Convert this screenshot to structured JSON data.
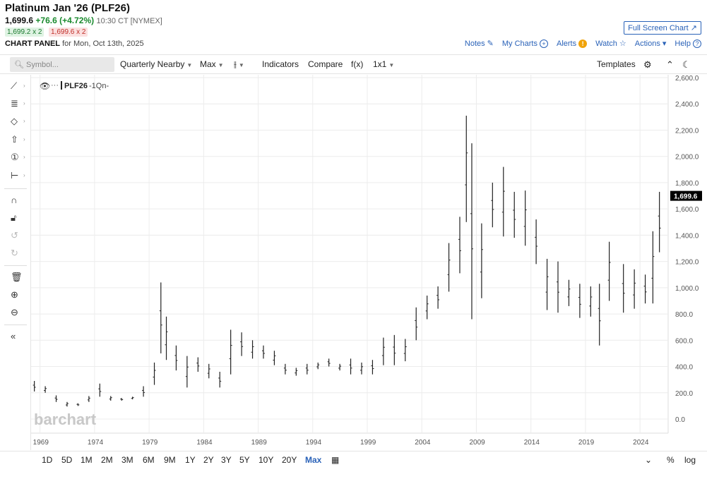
{
  "header": {
    "title": "Platinum Jan '26 (PLF26)",
    "last": "1,699.6",
    "change": "+76.6 (+4.72%)",
    "time": "10:30 CT [NYMEX]",
    "bid": "1,699.2 x 2",
    "ask": "1,699.6 x 2",
    "panel_label": "CHART PANEL",
    "panel_date": "for Mon, Oct 13th, 2025",
    "fullscreen": "Full Screen Chart ↗"
  },
  "links": {
    "notes": "Notes",
    "mycharts": "My Charts",
    "alerts": "Alerts",
    "watch": "Watch",
    "actions": "Actions",
    "help": "Help"
  },
  "toolbar": {
    "symbol_placeholder": "Symbol...",
    "period": "Quarterly Nearby",
    "range": "Max",
    "type_icon": "⫲",
    "indicators": "Indicators",
    "compare": "Compare",
    "fx": "f(x)",
    "layout": "1x1",
    "templates": "Templates"
  },
  "legend": {
    "symbol": "PLF26",
    "interval": "-1Qn-"
  },
  "watermark": "barchart",
  "price_label": "1,699.6",
  "colors": {
    "accent": "#2a62b8",
    "up": "#1a8a2e",
    "down": "#c0302a",
    "bars": "#222222"
  },
  "bottom": {
    "ranges": [
      "1D",
      "5D",
      "1M",
      "2M",
      "3M",
      "6M",
      "9M",
      "1Y",
      "2Y",
      "3Y",
      "5Y",
      "10Y",
      "20Y",
      "Max"
    ],
    "active": "Max",
    "percent": "%",
    "log": "log"
  },
  "chart_data": {
    "type": "ohlc",
    "yticks": [
      "2,600.0",
      "2,400.0",
      "2,200.0",
      "2,000.0",
      "1,800.0",
      "1,600.0",
      "1,400.0",
      "1,200.0",
      "1,000.0",
      "800.0",
      "600.0",
      "400.0",
      "200.0",
      "0.0"
    ],
    "xticks": [
      "1969",
      "1974",
      "1979",
      "1984",
      "1989",
      "1994",
      "1999",
      "2004",
      "2009",
      "2014",
      "2019",
      "2024"
    ],
    "ylim": [
      0,
      2600
    ],
    "xlim": [
      1968.2,
      2026.6
    ],
    "last": 1699.6,
    "series": [
      {
        "x": 1968.5,
        "h": 290,
        "l": 210
      },
      {
        "x": 1969.5,
        "h": 250,
        "l": 200
      },
      {
        "x": 1970.5,
        "h": 180,
        "l": 130
      },
      {
        "x": 1971.5,
        "h": 130,
        "l": 95
      },
      {
        "x": 1972.5,
        "h": 120,
        "l": 100
      },
      {
        "x": 1973.5,
        "h": 175,
        "l": 130
      },
      {
        "x": 1974.5,
        "h": 270,
        "l": 170
      },
      {
        "x": 1975.5,
        "h": 175,
        "l": 140
      },
      {
        "x": 1976.5,
        "h": 160,
        "l": 140
      },
      {
        "x": 1977.5,
        "h": 170,
        "l": 150
      },
      {
        "x": 1978.5,
        "h": 250,
        "l": 170
      },
      {
        "x": 1979.5,
        "h": 430,
        "l": 260
      },
      {
        "x": 1980.1,
        "h": 1040,
        "l": 500
      },
      {
        "x": 1980.6,
        "h": 780,
        "l": 450
      },
      {
        "x": 1981.5,
        "h": 560,
        "l": 370
      },
      {
        "x": 1982.5,
        "h": 480,
        "l": 240
      },
      {
        "x": 1983.5,
        "h": 470,
        "l": 360
      },
      {
        "x": 1984.5,
        "h": 420,
        "l": 310
      },
      {
        "x": 1985.5,
        "h": 360,
        "l": 240
      },
      {
        "x": 1986.5,
        "h": 680,
        "l": 340
      },
      {
        "x": 1987.5,
        "h": 660,
        "l": 480
      },
      {
        "x": 1988.5,
        "h": 600,
        "l": 460
      },
      {
        "x": 1989.5,
        "h": 560,
        "l": 460
      },
      {
        "x": 1990.5,
        "h": 520,
        "l": 410
      },
      {
        "x": 1991.5,
        "h": 420,
        "l": 340
      },
      {
        "x": 1992.5,
        "h": 390,
        "l": 330
      },
      {
        "x": 1993.5,
        "h": 420,
        "l": 340
      },
      {
        "x": 1994.5,
        "h": 430,
        "l": 380
      },
      {
        "x": 1995.5,
        "h": 460,
        "l": 400
      },
      {
        "x": 1996.5,
        "h": 420,
        "l": 370
      },
      {
        "x": 1997.5,
        "h": 460,
        "l": 340
      },
      {
        "x": 1998.5,
        "h": 430,
        "l": 340
      },
      {
        "x": 1999.5,
        "h": 450,
        "l": 340
      },
      {
        "x": 2000.5,
        "h": 620,
        "l": 410
      },
      {
        "x": 2001.5,
        "h": 640,
        "l": 410
      },
      {
        "x": 2002.5,
        "h": 610,
        "l": 440
      },
      {
        "x": 2003.5,
        "h": 850,
        "l": 600
      },
      {
        "x": 2004.5,
        "h": 940,
        "l": 760
      },
      {
        "x": 2005.5,
        "h": 1010,
        "l": 840
      },
      {
        "x": 2006.5,
        "h": 1340,
        "l": 970
      },
      {
        "x": 2007.5,
        "h": 1540,
        "l": 1110
      },
      {
        "x": 2008.1,
        "h": 2310,
        "l": 1500
      },
      {
        "x": 2008.6,
        "h": 2100,
        "l": 760
      },
      {
        "x": 2009.5,
        "h": 1490,
        "l": 920
      },
      {
        "x": 2010.5,
        "h": 1800,
        "l": 1460
      },
      {
        "x": 2011.5,
        "h": 1920,
        "l": 1390
      },
      {
        "x": 2012.5,
        "h": 1730,
        "l": 1380
      },
      {
        "x": 2013.5,
        "h": 1740,
        "l": 1320
      },
      {
        "x": 2014.5,
        "h": 1520,
        "l": 1180
      },
      {
        "x": 2015.5,
        "h": 1220,
        "l": 830
      },
      {
        "x": 2016.5,
        "h": 1200,
        "l": 810
      },
      {
        "x": 2017.5,
        "h": 1060,
        "l": 860
      },
      {
        "x": 2018.5,
        "h": 1030,
        "l": 770
      },
      {
        "x": 2019.5,
        "h": 1010,
        "l": 780
      },
      {
        "x": 2020.3,
        "h": 1030,
        "l": 560
      },
      {
        "x": 2021.2,
        "h": 1350,
        "l": 900
      },
      {
        "x": 2022.5,
        "h": 1180,
        "l": 810
      },
      {
        "x": 2023.5,
        "h": 1140,
        "l": 840
      },
      {
        "x": 2024.5,
        "h": 1100,
        "l": 880
      },
      {
        "x": 2025.2,
        "h": 1430,
        "l": 880
      },
      {
        "x": 2025.8,
        "h": 1730,
        "l": 1270
      }
    ]
  }
}
